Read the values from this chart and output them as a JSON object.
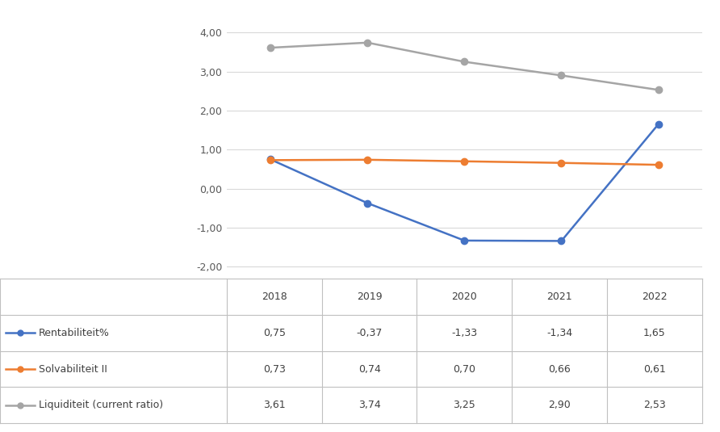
{
  "years": [
    2018,
    2019,
    2020,
    2021,
    2022
  ],
  "rentabiliteit": [
    0.75,
    -0.37,
    -1.33,
    -1.34,
    1.65
  ],
  "solvabiliteit": [
    0.73,
    0.74,
    0.7,
    0.66,
    0.61
  ],
  "liquiditeit": [
    3.61,
    3.74,
    3.25,
    2.9,
    2.53
  ],
  "rentabiliteit_color": "#4472C4",
  "solvabiliteit_color": "#ED7D31",
  "liquiditeit_color": "#A5A5A5",
  "ylim": [
    -2.25,
    4.5
  ],
  "yticks": [
    -2.0,
    -1.0,
    0.0,
    1.0,
    2.0,
    3.0,
    4.0
  ],
  "ytick_labels": [
    "-2,00",
    "-1,00",
    "0,00",
    "1,00",
    "2,00",
    "3,00",
    "4,00"
  ],
  "legend_rentabiliteit": "Rentabiliteit%",
  "legend_solvabiliteit": "Solvabiliteit II",
  "legend_liquiditeit": "Liquiditeit (current ratio)",
  "table_rows": [
    [
      "Rentabiliteit%",
      "0,75",
      "-0,37",
      "-1,33",
      "-1,34",
      "1,65"
    ],
    [
      "Solvabiliteit II",
      "0,73",
      "0,74",
      "0,70",
      "0,66",
      "0,61"
    ],
    [
      "Liquiditeit (current ratio)",
      "3,61",
      "3,74",
      "3,25",
      "2,90",
      "2,53"
    ]
  ],
  "table_header": [
    "",
    "2018",
    "2019",
    "2020",
    "2021",
    "2022"
  ],
  "background_color": "#FFFFFF",
  "grid_color": "#D9D9D9",
  "table_line_color": "#C0C0C0",
  "marker": "o",
  "linewidth": 1.8,
  "markersize": 6,
  "tick_fontsize": 9,
  "table_fontsize": 9
}
